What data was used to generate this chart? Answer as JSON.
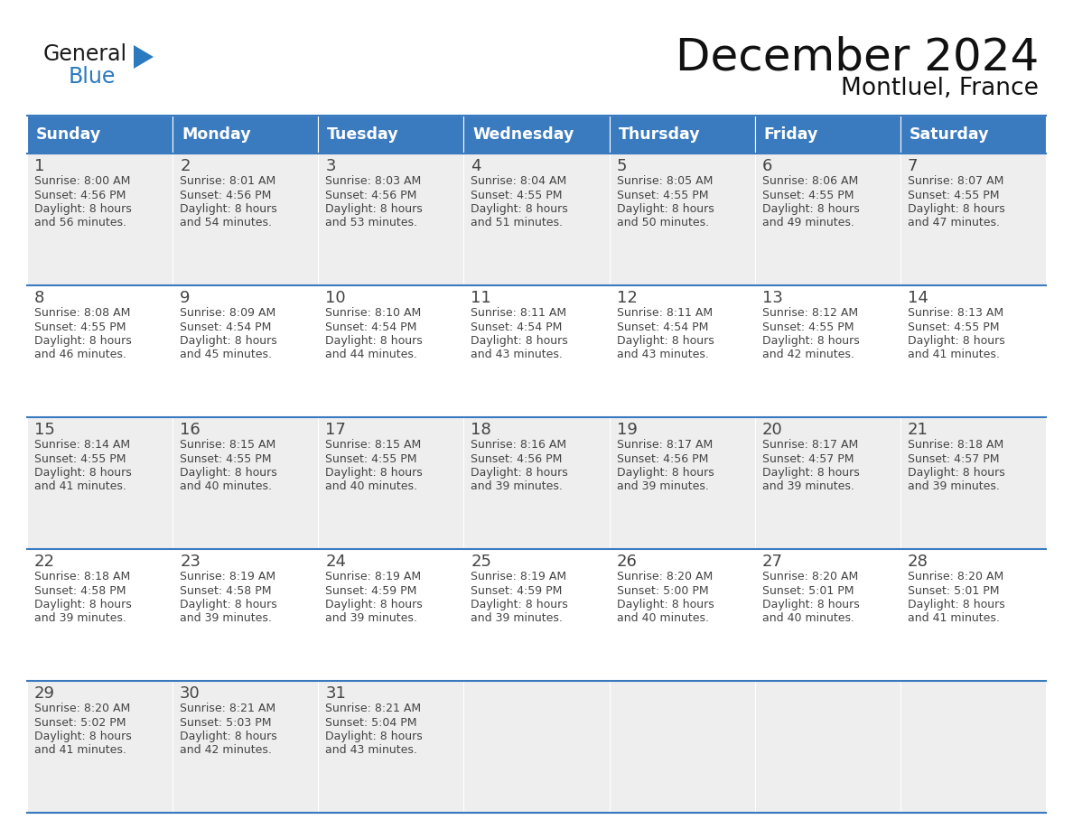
{
  "title": "December 2024",
  "subtitle": "Montluel, France",
  "header_color": "#3a7abf",
  "header_text_color": "#ffffff",
  "day_names": [
    "Sunday",
    "Monday",
    "Tuesday",
    "Wednesday",
    "Thursday",
    "Friday",
    "Saturday"
  ],
  "bg_color": "#ffffff",
  "cell_bg_light": "#eeeeee",
  "cell_bg_white": "#ffffff",
  "border_color": "#3a7abf",
  "day_num_color": "#444444",
  "cell_text_color": "#444444",
  "title_color": "#111111",
  "subtitle_color": "#111111",
  "logo_dark_color": "#1a1a1a",
  "logo_blue_color": "#2b7abf",
  "calendar_data": [
    [
      {
        "day": "1",
        "sunrise": "8:00 AM",
        "sunset": "4:56 PM",
        "daylight": "8 hours",
        "daylight2": "and 56 minutes."
      },
      {
        "day": "2",
        "sunrise": "8:01 AM",
        "sunset": "4:56 PM",
        "daylight": "8 hours",
        "daylight2": "and 54 minutes."
      },
      {
        "day": "3",
        "sunrise": "8:03 AM",
        "sunset": "4:56 PM",
        "daylight": "8 hours",
        "daylight2": "and 53 minutes."
      },
      {
        "day": "4",
        "sunrise": "8:04 AM",
        "sunset": "4:55 PM",
        "daylight": "8 hours",
        "daylight2": "and 51 minutes."
      },
      {
        "day": "5",
        "sunrise": "8:05 AM",
        "sunset": "4:55 PM",
        "daylight": "8 hours",
        "daylight2": "and 50 minutes."
      },
      {
        "day": "6",
        "sunrise": "8:06 AM",
        "sunset": "4:55 PM",
        "daylight": "8 hours",
        "daylight2": "and 49 minutes."
      },
      {
        "day": "7",
        "sunrise": "8:07 AM",
        "sunset": "4:55 PM",
        "daylight": "8 hours",
        "daylight2": "and 47 minutes."
      }
    ],
    [
      {
        "day": "8",
        "sunrise": "8:08 AM",
        "sunset": "4:55 PM",
        "daylight": "8 hours",
        "daylight2": "and 46 minutes."
      },
      {
        "day": "9",
        "sunrise": "8:09 AM",
        "sunset": "4:54 PM",
        "daylight": "8 hours",
        "daylight2": "and 45 minutes."
      },
      {
        "day": "10",
        "sunrise": "8:10 AM",
        "sunset": "4:54 PM",
        "daylight": "8 hours",
        "daylight2": "and 44 minutes."
      },
      {
        "day": "11",
        "sunrise": "8:11 AM",
        "sunset": "4:54 PM",
        "daylight": "8 hours",
        "daylight2": "and 43 minutes."
      },
      {
        "day": "12",
        "sunrise": "8:11 AM",
        "sunset": "4:54 PM",
        "daylight": "8 hours",
        "daylight2": "and 43 minutes."
      },
      {
        "day": "13",
        "sunrise": "8:12 AM",
        "sunset": "4:55 PM",
        "daylight": "8 hours",
        "daylight2": "and 42 minutes."
      },
      {
        "day": "14",
        "sunrise": "8:13 AM",
        "sunset": "4:55 PM",
        "daylight": "8 hours",
        "daylight2": "and 41 minutes."
      }
    ],
    [
      {
        "day": "15",
        "sunrise": "8:14 AM",
        "sunset": "4:55 PM",
        "daylight": "8 hours",
        "daylight2": "and 41 minutes."
      },
      {
        "day": "16",
        "sunrise": "8:15 AM",
        "sunset": "4:55 PM",
        "daylight": "8 hours",
        "daylight2": "and 40 minutes."
      },
      {
        "day": "17",
        "sunrise": "8:15 AM",
        "sunset": "4:55 PM",
        "daylight": "8 hours",
        "daylight2": "and 40 minutes."
      },
      {
        "day": "18",
        "sunrise": "8:16 AM",
        "sunset": "4:56 PM",
        "daylight": "8 hours",
        "daylight2": "and 39 minutes."
      },
      {
        "day": "19",
        "sunrise": "8:17 AM",
        "sunset": "4:56 PM",
        "daylight": "8 hours",
        "daylight2": "and 39 minutes."
      },
      {
        "day": "20",
        "sunrise": "8:17 AM",
        "sunset": "4:57 PM",
        "daylight": "8 hours",
        "daylight2": "and 39 minutes."
      },
      {
        "day": "21",
        "sunrise": "8:18 AM",
        "sunset": "4:57 PM",
        "daylight": "8 hours",
        "daylight2": "and 39 minutes."
      }
    ],
    [
      {
        "day": "22",
        "sunrise": "8:18 AM",
        "sunset": "4:58 PM",
        "daylight": "8 hours",
        "daylight2": "and 39 minutes."
      },
      {
        "day": "23",
        "sunrise": "8:19 AM",
        "sunset": "4:58 PM",
        "daylight": "8 hours",
        "daylight2": "and 39 minutes."
      },
      {
        "day": "24",
        "sunrise": "8:19 AM",
        "sunset": "4:59 PM",
        "daylight": "8 hours",
        "daylight2": "and 39 minutes."
      },
      {
        "day": "25",
        "sunrise": "8:19 AM",
        "sunset": "4:59 PM",
        "daylight": "8 hours",
        "daylight2": "and 39 minutes."
      },
      {
        "day": "26",
        "sunrise": "8:20 AM",
        "sunset": "5:00 PM",
        "daylight": "8 hours",
        "daylight2": "and 40 minutes."
      },
      {
        "day": "27",
        "sunrise": "8:20 AM",
        "sunset": "5:01 PM",
        "daylight": "8 hours",
        "daylight2": "and 40 minutes."
      },
      {
        "day": "28",
        "sunrise": "8:20 AM",
        "sunset": "5:01 PM",
        "daylight": "8 hours",
        "daylight2": "and 41 minutes."
      }
    ],
    [
      {
        "day": "29",
        "sunrise": "8:20 AM",
        "sunset": "5:02 PM",
        "daylight": "8 hours",
        "daylight2": "and 41 minutes."
      },
      {
        "day": "30",
        "sunrise": "8:21 AM",
        "sunset": "5:03 PM",
        "daylight": "8 hours",
        "daylight2": "and 42 minutes."
      },
      {
        "day": "31",
        "sunrise": "8:21 AM",
        "sunset": "5:04 PM",
        "daylight": "8 hours",
        "daylight2": "and 43 minutes."
      },
      null,
      null,
      null,
      null
    ]
  ]
}
